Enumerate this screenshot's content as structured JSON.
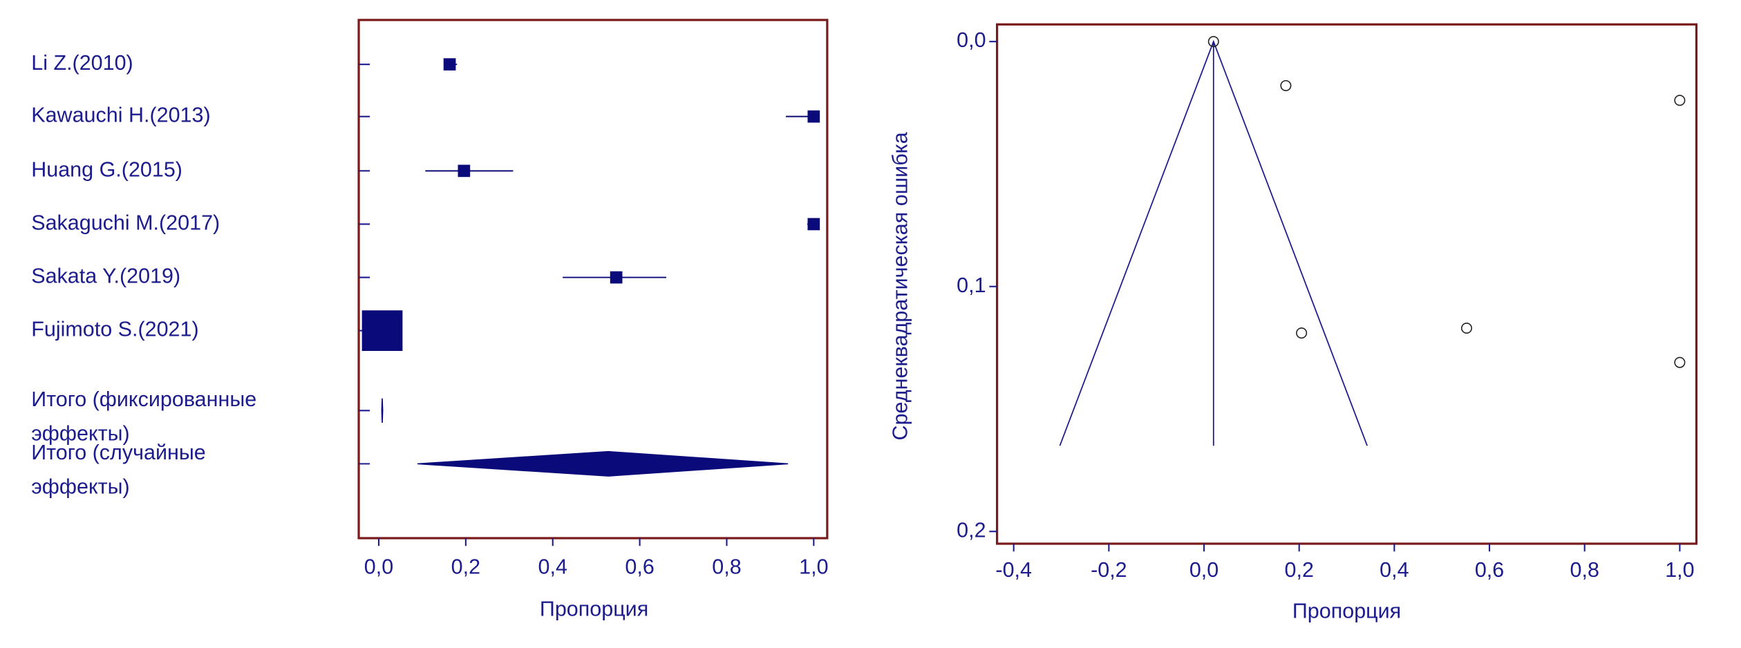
{
  "chart_data": [
    {
      "type": "forest",
      "xlabel": "Пропорция",
      "xlim": [
        -0.046,
        1.031
      ],
      "xticks": [
        {
          "value": 0,
          "label": "0,0"
        },
        {
          "value": 0.2,
          "label": "0,2"
        },
        {
          "value": 0.4,
          "label": "0,4"
        },
        {
          "value": 0.6,
          "label": "0,6"
        },
        {
          "value": 0.8,
          "label": "0,8"
        },
        {
          "value": 1,
          "label": "1,0"
        }
      ],
      "color": "#0a0a7a",
      "studies": [
        {
          "label": "Li Z.(2010)",
          "value": 0.163,
          "ci": [
            0.15,
            0.18
          ],
          "weight": 6
        },
        {
          "label": "Kawauchi H.(2013)",
          "value": 1.0,
          "ci": [
            0.936,
            1.0
          ],
          "weight": 6
        },
        {
          "label": "Huang G.(2015)",
          "value": 0.196,
          "ci": [
            0.107,
            0.309
          ],
          "weight": 6
        },
        {
          "label": "Sakaguchi M.(2017)",
          "value": 1.0,
          "ci": [
            0.985,
            1.0
          ],
          "weight": 6
        },
        {
          "label": "Sakata Y.(2019)",
          "value": 0.546,
          "ci": [
            0.423,
            0.661
          ],
          "weight": 6
        },
        {
          "label": "Fujimoto S.(2021)",
          "value": 0.008,
          "ci": [
            0.0,
            0.03
          ],
          "weight": 66
        }
      ],
      "pooled": [
        {
          "label_lines": [
            "Итого (фиксированные",
            "эффекты)"
          ],
          "value": 0.008,
          "ci": [
            0.007,
            0.009
          ]
        },
        {
          "label_lines": [
            "Итого (случайные",
            "эффекты)"
          ],
          "value": 0.528,
          "ci": [
            0.089,
            0.941
          ]
        }
      ]
    },
    {
      "type": "funnel",
      "xlabel": "Пропорция",
      "ylabel": "Среднеквадратическая ошибка",
      "xlim": [
        -0.435,
        1.035
      ],
      "ylim": [
        -0.007,
        0.205
      ],
      "xticks": [
        {
          "value": -0.4,
          "label": "-0,4"
        },
        {
          "value": -0.2,
          "label": "-0,2"
        },
        {
          "value": 0,
          "label": "0,0"
        },
        {
          "value": 0.2,
          "label": "0,2"
        },
        {
          "value": 0.4,
          "label": "0,4"
        },
        {
          "value": 0.6,
          "label": "0,6"
        },
        {
          "value": 0.8,
          "label": "0,8"
        },
        {
          "value": 1,
          "label": "1,0"
        }
      ],
      "yticks": [
        {
          "value": 0,
          "label": "0,0"
        },
        {
          "value": 0.1,
          "label": "0,1"
        },
        {
          "value": 0.2,
          "label": "0,2"
        }
      ],
      "x": [
        0.02,
        0.172,
        1.0,
        0.205,
        0.552,
        1.0
      ],
      "y": [
        0.0,
        0.018,
        0.024,
        0.119,
        0.117,
        0.131
      ],
      "funnel": {
        "apex_x": 0.02,
        "base_y": 0.165,
        "left_x": -0.303,
        "right_x": 0.343
      }
    }
  ]
}
